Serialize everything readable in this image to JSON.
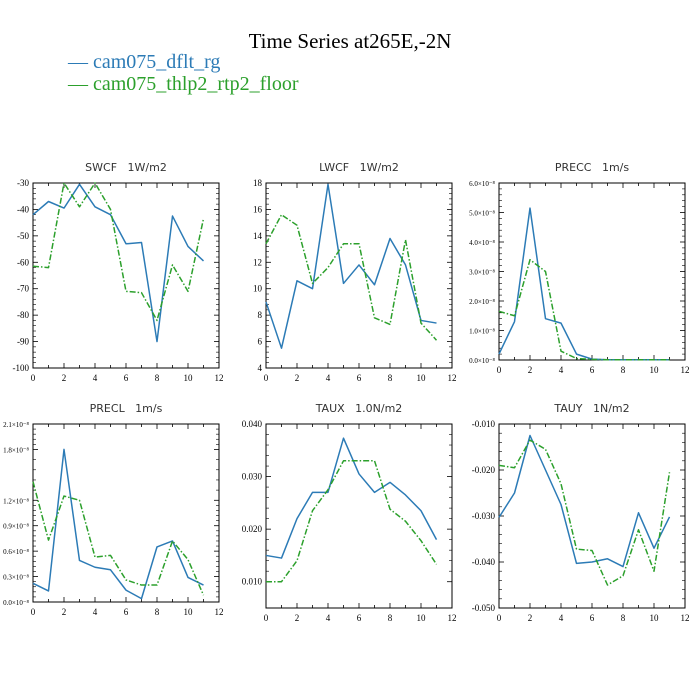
{
  "figure": {
    "title": "Time Series at265E,-2N",
    "legend": [
      {
        "label": "— cam075_dflt_rg",
        "color": "#2c7bb6"
      },
      {
        "label": "— cam075_thlp2_rtp2_floor",
        "color": "#2ca02c"
      }
    ]
  },
  "colors": {
    "series1": "#2c7bb6",
    "series2": "#2ca02c"
  },
  "chart_data": [
    {
      "type": "line",
      "title": "SWCF   1W/m2",
      "x": [
        0,
        1,
        2,
        3,
        4,
        5,
        6,
        7,
        8,
        9,
        10,
        11
      ],
      "xlim": [
        0,
        12
      ],
      "xticks": [
        "0",
        "2",
        "4",
        "6",
        "8",
        "10",
        "12"
      ],
      "ylim": [
        -100,
        -30
      ],
      "yticks": [
        "-100",
        "-90",
        "-80",
        "-70",
        "-60",
        "-50",
        "-40",
        "-30"
      ],
      "series": [
        {
          "name": "cam075_dflt_rg",
          "values": [
            -42,
            -37,
            -39.5,
            -30.5,
            -39,
            -42,
            -53,
            -52.5,
            -90,
            -42.5,
            -54,
            -59.5
          ]
        },
        {
          "name": "cam075_thlp2_rtp2_floor",
          "values": [
            -61.5,
            -62,
            -30,
            -39,
            -30,
            -40,
            -71,
            -71.5,
            -82,
            -61,
            -71,
            -43.5
          ]
        }
      ]
    },
    {
      "type": "line",
      "title": "LWCF   1W/m2",
      "x": [
        0,
        1,
        2,
        3,
        4,
        5,
        6,
        7,
        8,
        9,
        10,
        11
      ],
      "xlim": [
        0,
        12
      ],
      "xticks": [
        "0",
        "2",
        "4",
        "6",
        "8",
        "10",
        "12"
      ],
      "ylim": [
        4,
        18
      ],
      "yticks": [
        "4",
        "6",
        "8",
        "10",
        "12",
        "14",
        "16",
        "18"
      ],
      "series": [
        {
          "name": "cam075_dflt_rg",
          "values": [
            9,
            5.5,
            10.6,
            10,
            17.9,
            10.4,
            11.8,
            10.3,
            13.8,
            11.8,
            7.6,
            7.4
          ]
        },
        {
          "name": "cam075_thlp2_rtp2_floor",
          "values": [
            13.4,
            15.6,
            14.8,
            10.4,
            11.6,
            13.4,
            13.4,
            7.8,
            7.3,
            13.7,
            7.4,
            6.1
          ]
        }
      ]
    },
    {
      "type": "line",
      "title": "PRECC   1m/s",
      "x": [
        0,
        1,
        2,
        3,
        4,
        5,
        6,
        7,
        8,
        9,
        10,
        11
      ],
      "xlim": [
        0,
        12
      ],
      "xticks": [
        "0",
        "2",
        "4",
        "6",
        "8",
        "10",
        "12"
      ],
      "ylim": [
        0,
        6
      ],
      "yticks": [
        "0.0×10⁻⁸",
        "1.0×10⁻⁸",
        "2.0×10⁻⁸",
        "3.0×10⁻⁸",
        "4.0×10⁻⁸",
        "5.0×10⁻⁸",
        "6.0×10⁻⁸"
      ],
      "series": [
        {
          "name": "cam075_dflt_rg",
          "values": [
            0.2,
            1.3,
            5.15,
            1.4,
            1.25,
            0.2,
            0.03,
            0.01,
            0.01,
            0.01,
            0.01,
            0.01
          ]
        },
        {
          "name": "cam075_thlp2_rtp2_floor",
          "values": [
            1.65,
            1.5,
            3.4,
            3.0,
            0.3,
            0.05,
            0.02,
            0.01,
            0.01,
            0.01,
            0.01,
            0.01
          ]
        }
      ]
    },
    {
      "type": "line",
      "title": "PRECL   1m/s",
      "x": [
        0,
        1,
        2,
        3,
        4,
        5,
        6,
        7,
        8,
        9,
        10,
        11
      ],
      "xlim": [
        0,
        12
      ],
      "xticks": [
        "0",
        "2",
        "4",
        "6",
        "8",
        "10",
        "12"
      ],
      "ylim": [
        0,
        2.1
      ],
      "yticks": [
        "0.0×10⁻⁸",
        "0.3×10⁻⁸",
        "0.6×10⁻⁸",
        "0.9×10⁻⁸",
        "1.2×10⁻⁸",
        "1.8×10⁻⁸",
        "2.1×10⁻⁸"
      ],
      "ytick_values": [
        0,
        0.3,
        0.6,
        0.9,
        1.2,
        1.8,
        2.1
      ],
      "series": [
        {
          "name": "cam075_dflt_rg",
          "values": [
            0.22,
            0.13,
            1.8,
            0.49,
            0.41,
            0.38,
            0.14,
            0.04,
            0.65,
            0.72,
            0.29,
            0.2
          ]
        },
        {
          "name": "cam075_thlp2_rtp2_floor",
          "values": [
            1.42,
            0.73,
            1.25,
            1.2,
            0.53,
            0.55,
            0.26,
            0.2,
            0.2,
            0.72,
            0.5,
            0.08
          ]
        }
      ]
    },
    {
      "type": "line",
      "title": "TAUX   1.0N/m2",
      "x": [
        0,
        1,
        2,
        3,
        4,
        5,
        6,
        7,
        8,
        9,
        10,
        11
      ],
      "xlim": [
        0,
        12
      ],
      "xticks": [
        "0",
        "2",
        "4",
        "6",
        "8",
        "10",
        "12"
      ],
      "ylim": [
        0.005,
        0.04
      ],
      "yticks": [
        "0.010",
        "0.020",
        "0.030",
        "0.040"
      ],
      "ytick_values": [
        0.01,
        0.02,
        0.03,
        0.04
      ],
      "series": [
        {
          "name": "cam075_dflt_rg",
          "values": [
            0.015,
            0.0145,
            0.022,
            0.027,
            0.027,
            0.0373,
            0.0305,
            0.027,
            0.0289,
            0.0265,
            0.0235,
            0.018
          ]
        },
        {
          "name": "cam075_thlp2_rtp2_floor",
          "values": [
            0.01,
            0.01,
            0.014,
            0.0235,
            0.0275,
            0.033,
            0.033,
            0.033,
            0.0238,
            0.0215,
            0.0178,
            0.0133
          ]
        }
      ]
    },
    {
      "type": "line",
      "title": "TAUY   1N/m2",
      "x": [
        0,
        1,
        2,
        3,
        4,
        5,
        6,
        7,
        8,
        9,
        10,
        11
      ],
      "xlim": [
        0,
        12
      ],
      "xticks": [
        "0",
        "2",
        "4",
        "6",
        "8",
        "10",
        "12"
      ],
      "ylim": [
        -0.05,
        -0.01
      ],
      "yticks": [
        "-0.050",
        "-0.040",
        "-0.030",
        "-0.020",
        "-0.010"
      ],
      "ytick_values": [
        -0.05,
        -0.04,
        -0.03,
        -0.02,
        -0.01
      ],
      "series": [
        {
          "name": "cam075_dflt_rg",
          "values": [
            -0.0303,
            -0.025,
            -0.0125,
            -0.02,
            -0.0275,
            -0.0403,
            -0.04,
            -0.0393,
            -0.041,
            -0.0293,
            -0.037,
            -0.0302
          ]
        },
        {
          "name": "cam075_thlp2_rtp2_floor",
          "values": [
            -0.019,
            -0.0195,
            -0.0135,
            -0.0155,
            -0.023,
            -0.0372,
            -0.0375,
            -0.045,
            -0.043,
            -0.033,
            -0.042,
            -0.0205
          ]
        }
      ]
    }
  ]
}
